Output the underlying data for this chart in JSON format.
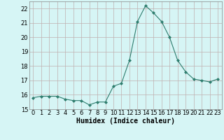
{
  "x": [
    0,
    1,
    2,
    3,
    4,
    5,
    6,
    7,
    8,
    9,
    10,
    11,
    12,
    13,
    14,
    15,
    16,
    17,
    18,
    19,
    20,
    21,
    22,
    23
  ],
  "y": [
    15.8,
    15.9,
    15.9,
    15.9,
    15.7,
    15.6,
    15.6,
    15.3,
    15.5,
    15.5,
    16.6,
    16.8,
    18.4,
    21.1,
    22.2,
    21.7,
    21.1,
    20.0,
    18.4,
    17.6,
    17.1,
    17.0,
    16.9,
    17.1
  ],
  "title": "",
  "xlabel": "Humidex (Indice chaleur)",
  "ylabel": "",
  "xlim": [
    -0.5,
    23.5
  ],
  "ylim": [
    15.0,
    22.5
  ],
  "yticks": [
    15,
    16,
    17,
    18,
    19,
    20,
    21,
    22
  ],
  "xticks": [
    0,
    1,
    2,
    3,
    4,
    5,
    6,
    7,
    8,
    9,
    10,
    11,
    12,
    13,
    14,
    15,
    16,
    17,
    18,
    19,
    20,
    21,
    22,
    23
  ],
  "xtick_labels": [
    "0",
    "1",
    "2",
    "3",
    "4",
    "5",
    "6",
    "7",
    "8",
    "9",
    "10",
    "11",
    "12",
    "13",
    "14",
    "15",
    "16",
    "17",
    "18",
    "19",
    "20",
    "21",
    "22",
    "23"
  ],
  "line_color": "#2e7d6e",
  "marker": "D",
  "marker_size": 2.0,
  "bg_color": "#d6f5f5",
  "grid_color": "#c0b0b0",
  "axes_bg": "#d6f5f5",
  "tick_fontsize": 6.0,
  "xlabel_fontsize": 7.0
}
